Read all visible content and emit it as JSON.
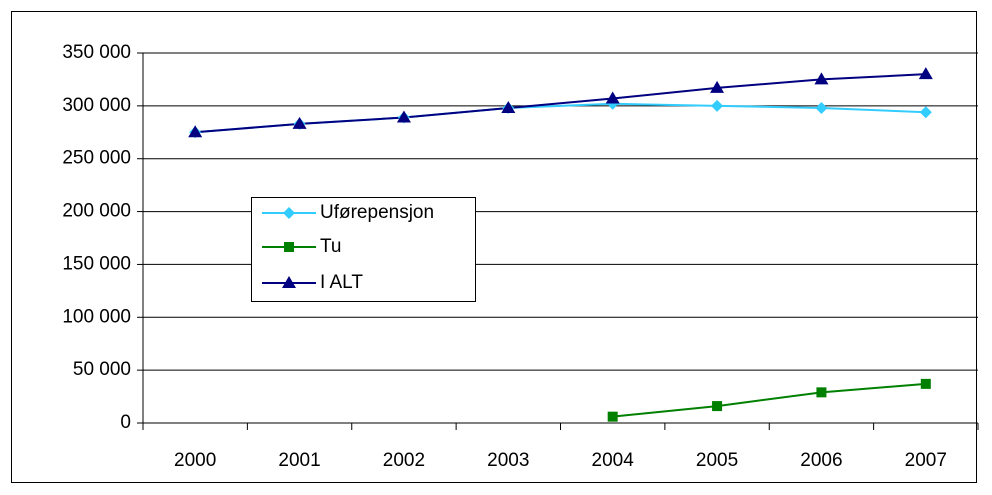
{
  "chart_data": {
    "type": "line",
    "categories": [
      "2000",
      "2001",
      "2002",
      "2003",
      "2004",
      "2005",
      "2006",
      "2007"
    ],
    "series": [
      {
        "name": "Uførepensjon",
        "color": "#33ccff",
        "marker": "diamond",
        "values": [
          275000,
          283000,
          289000,
          298000,
          302000,
          300000,
          298000,
          294000
        ]
      },
      {
        "name": "Tu",
        "color": "#008000",
        "marker": "square",
        "values": [
          null,
          null,
          null,
          null,
          6000,
          16000,
          29000,
          37000
        ]
      },
      {
        "name": "I ALT",
        "color": "#000080",
        "marker": "triangle",
        "values": [
          275000,
          283000,
          289000,
          298000,
          307000,
          317000,
          325000,
          330000
        ]
      }
    ],
    "ylim": [
      0,
      350000
    ],
    "yticks": [
      {
        "value": 0,
        "label": "0"
      },
      {
        "value": 50000,
        "label": "50 000"
      },
      {
        "value": 100000,
        "label": "100 000"
      },
      {
        "value": 150000,
        "label": "150 000"
      },
      {
        "value": 200000,
        "label": "200 000"
      },
      {
        "value": 250000,
        "label": "250 000"
      },
      {
        "value": 300000,
        "label": "300 000"
      },
      {
        "value": 350000,
        "label": "350 000"
      }
    ],
    "grid": true
  }
}
